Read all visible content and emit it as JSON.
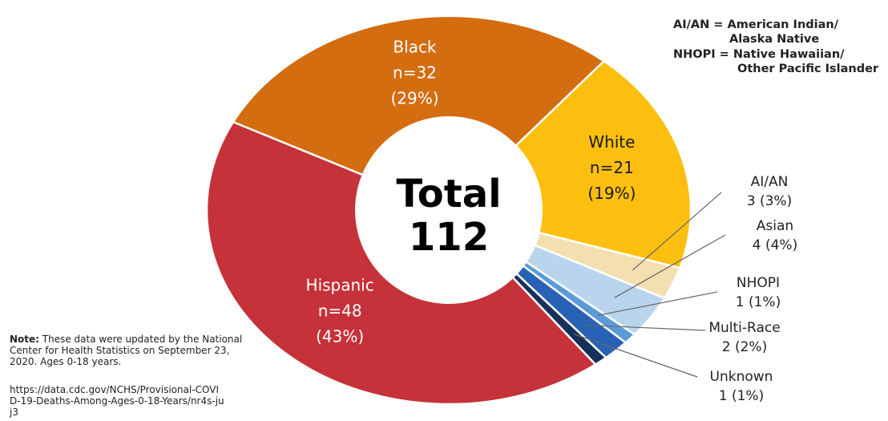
{
  "chart_data": {
    "type": "pie",
    "variant": "donut",
    "center_label": {
      "line1": "Total",
      "line2": "112"
    },
    "total": 112,
    "slices": [
      {
        "label": "Black",
        "n_text": "n=32",
        "pct_text": "(29%)",
        "value": 32,
        "color": "#D46C10"
      },
      {
        "label": "White",
        "n_text": "n=21",
        "pct_text": "(19%)",
        "value": 21,
        "color": "#FDBF0F"
      },
      {
        "label": "AI/AN",
        "value_text": "3 (3%)",
        "value": 3,
        "color": "#F3DFAF"
      },
      {
        "label": "Asian",
        "value_text": "4 (4%)",
        "value": 4,
        "color": "#B9D5EE"
      },
      {
        "label": "NHOPI",
        "value_text": "1 (1%)",
        "value": 1,
        "color": "#5D9BD8"
      },
      {
        "label": "Multi-Race",
        "value_text": "2 (2%)",
        "value": 2,
        "color": "#2862B5"
      },
      {
        "label": "Unknown",
        "value_text": "1 (1%)",
        "value": 1,
        "color": "#17305A"
      },
      {
        "label": "Hispanic",
        "n_text": "n=48",
        "pct_text": "(43%)",
        "value": 48,
        "color": "#C53239"
      }
    ]
  },
  "abbreviations": [
    {
      "line1": "AI/AN = American Indian/",
      "line2": "Alaska Native"
    },
    {
      "line1": "NHOPI = Native Hawaiian/",
      "line2": "Other Pacific Islander"
    }
  ],
  "note": {
    "prefix": "Note:",
    "text": " These data were updated by the National Center for Health Statistics on September 23, 2020. Ages 0-18 years.",
    "source": "https://data.cdc.gov/NCHS/Provisional-COVID-19-Deaths-Among-Ages-0-18-Years/nr4s-juj3"
  }
}
